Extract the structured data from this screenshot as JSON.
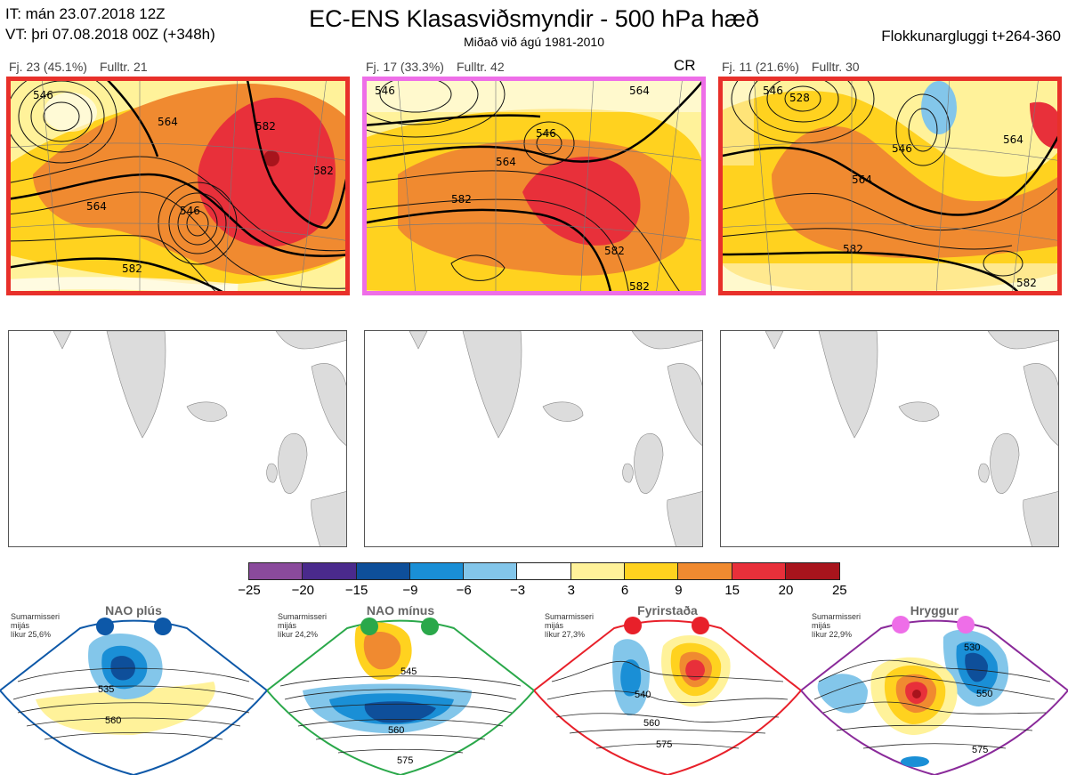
{
  "header": {
    "it_line": "IT: mán 23.07.2018 12Z",
    "vt_line": "VT: þri 07.08.2018 00Z  (+348h)",
    "title": "EC-ENS Klasasviðsmyndir - 500 hPa hæð",
    "subtitle": "Miðað við ágú 1981-2010",
    "window": "Flokkunargluggi t+264-360"
  },
  "panels": [
    {
      "count": "Fj. 23 (45.1%)",
      "rep": "Fulltr. 21",
      "cr": "",
      "frame_color": "#e8302a",
      "contours": [
        "546",
        "564",
        "582",
        "546",
        "564",
        "582",
        "582"
      ]
    },
    {
      "count": "Fj. 17 (33.3%)",
      "rep": "Fulltr. 42",
      "cr": "CR",
      "frame_color": "#ee6ee8",
      "contours": [
        "546",
        "546",
        "564",
        "564",
        "582",
        "582",
        "582"
      ]
    },
    {
      "count": "Fj. 11 (21.6%)",
      "rep": "Fulltr. 30",
      "cr": "",
      "frame_color": "#e8302a",
      "contours": [
        "546",
        "528",
        "546",
        "564",
        "564",
        "582",
        "582"
      ]
    }
  ],
  "colorbar": {
    "ticks": [
      "−25",
      "−20",
      "−15",
      "−9",
      "−6",
      "−3",
      "3",
      "6",
      "9",
      "15",
      "20",
      "25"
    ],
    "colors": [
      "#8a4a9c",
      "#4a2a8c",
      "#0e4f9a",
      "#1a8fd6",
      "#83c6ea",
      "#ffffff",
      "#fff29a",
      "#ffd21f",
      "#f08a30",
      "#e8303a",
      "#a8141c"
    ]
  },
  "regimes": [
    {
      "name": "NAO plús",
      "note": [
        "Sumarmisseri",
        "mijás",
        "líkur 25,6%"
      ],
      "dot_color": "#0d58a8",
      "frame_color": "#0d58a8",
      "contours": [
        "535",
        "560"
      ]
    },
    {
      "name": "NAO mínus",
      "note": [
        "Sumarmisseri",
        "mijás",
        "líkur 24,2%"
      ],
      "dot_color": "#2aa84a",
      "frame_color": "#2aa84a",
      "contours": [
        "545",
        "560",
        "575"
      ]
    },
    {
      "name": "Fyrirstaða",
      "note": [
        "Sumarmisseri",
        "mijás",
        "líkur 27,3%"
      ],
      "dot_color": "#e8202a",
      "frame_color": "#e8202a",
      "contours": [
        "540",
        "560",
        "575"
      ]
    },
    {
      "name": "Hryggur",
      "note": [
        "Sumarmisseri",
        "mijás",
        "líkur 22,9%"
      ],
      "dot_color": "#ee6ee8",
      "frame_color": "#8a2a9a",
      "contours": [
        "530",
        "550",
        "575"
      ]
    }
  ]
}
